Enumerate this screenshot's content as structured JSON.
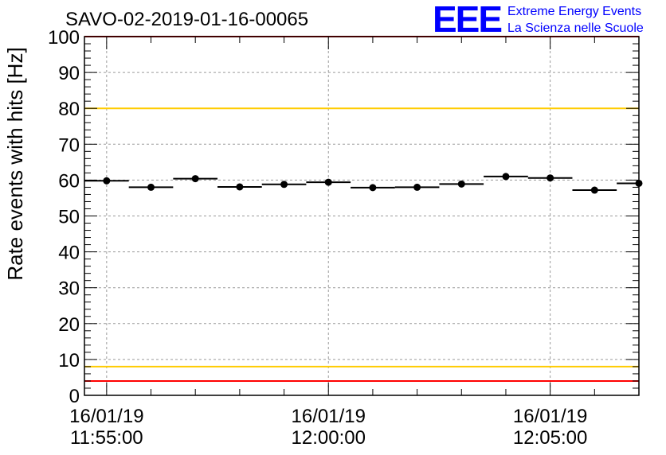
{
  "chart_data": {
    "type": "scatter",
    "title": "SAVO-02-2019-01-16-00065",
    "ylabel": "Rate events with hits [Hz]",
    "xlabel": "",
    "ylim": [
      0,
      100
    ],
    "xlim_minutes": [
      -0.5,
      12.0
    ],
    "yticks": [
      "0",
      "10",
      "20",
      "30",
      "40",
      "50",
      "60",
      "70",
      "80",
      "90",
      "100"
    ],
    "xticks": [
      {
        "minute": 0,
        "date": "16/01/19",
        "time": "11:55:00"
      },
      {
        "minute": 5,
        "date": "16/01/19",
        "time": "12:00:00"
      },
      {
        "minute": 10,
        "date": "16/01/19",
        "time": "12:05:00"
      }
    ],
    "series": [
      {
        "name": "rate",
        "x_minutes": [
          0,
          1,
          2,
          3,
          4,
          5,
          6,
          7,
          8,
          9,
          10,
          11,
          12
        ],
        "values": [
          59.8,
          58.0,
          60.4,
          58.1,
          58.8,
          59.4,
          57.9,
          58.0,
          58.9,
          61.0,
          60.6,
          57.2,
          59.1
        ],
        "bin_width_minutes": 1.0
      }
    ],
    "reference_lines": [
      {
        "value": 100,
        "color": "#ff0000"
      },
      {
        "value": 80,
        "color": "#ffcc00"
      },
      {
        "value": 8,
        "color": "#ffcc00"
      },
      {
        "value": 4,
        "color": "#ff0000"
      }
    ],
    "grid": true,
    "logo": {
      "text": "EEE",
      "line1": "Extreme Energy Events",
      "line2": "La Scienza nelle Scuole",
      "color": "#0000ff"
    }
  }
}
